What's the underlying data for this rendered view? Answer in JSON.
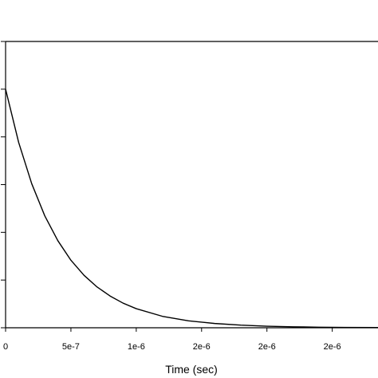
{
  "chart_data": {
    "type": "line",
    "title": "",
    "xlabel": "Time (sec)",
    "ylabel": "",
    "xlim": [
      0,
      2.85e-06
    ],
    "ylim": [
      0,
      1.2
    ],
    "x_ticks": [
      0,
      5e-07,
      1e-06,
      1.5e-06,
      2e-06,
      2.5e-06
    ],
    "x_tick_labels": [
      "0",
      "5e-7",
      "1e-6",
      "2e-6",
      "2e-6",
      "2e-6"
    ],
    "y_ticks": [
      0,
      0.2,
      0.4,
      0.6,
      0.8,
      1.0,
      1.2
    ],
    "grid": false,
    "legend": "none",
    "series": [
      {
        "x": [
          0,
          1e-07,
          2e-07,
          3e-07,
          4e-07,
          5e-07,
          6e-07,
          7e-07,
          8e-07,
          9e-07,
          1e-06,
          1.2e-06,
          1.4e-06,
          1.6e-06,
          1.8e-06,
          2e-06,
          2.2e-06,
          2.4e-06,
          2.6e-06,
          2.85e-06
        ],
        "y": [
          1.0,
          0.777,
          0.604,
          0.469,
          0.365,
          0.283,
          0.22,
          0.171,
          0.133,
          0.103,
          0.08,
          0.048,
          0.029,
          0.018,
          0.011,
          0.0066,
          0.004,
          0.0024,
          0.0015,
          0.0008
        ]
      }
    ],
    "colors": {
      "line": "#000000",
      "axis": "#000000"
    }
  }
}
